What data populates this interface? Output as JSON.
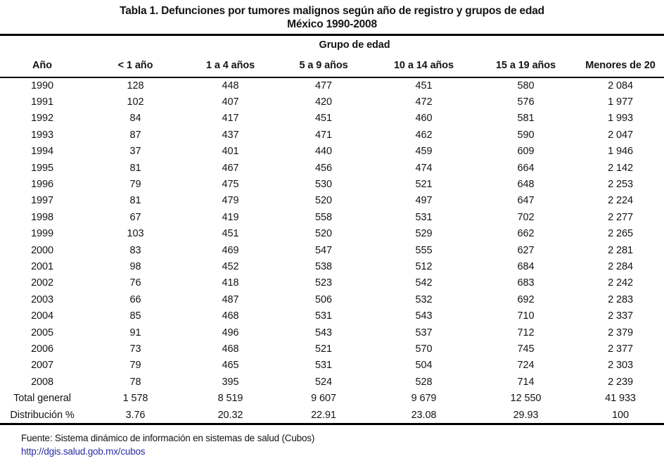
{
  "page": {
    "background": "#ffffff",
    "text_color": "#141414"
  },
  "title": {
    "line1": "Tabla 1. Defunciones por tumores malignos según año de registro y grupos de edad",
    "line2": "México 1990-2008"
  },
  "table": {
    "group_header": "Grupo de edad",
    "columns": [
      "Año",
      "< 1 año",
      "1 a 4 años",
      "5 a 9 años",
      "10 a 14 años",
      "15 a 19 años",
      "Menores de 20"
    ],
    "rows": [
      {
        "label": "1990",
        "values": [
          "128",
          "448",
          "477",
          "451",
          "580",
          "2 084"
        ]
      },
      {
        "label": "1991",
        "values": [
          "102",
          "407",
          "420",
          "472",
          "576",
          "1 977"
        ]
      },
      {
        "label": "1992",
        "values": [
          "84",
          "417",
          "451",
          "460",
          "581",
          "1 993"
        ]
      },
      {
        "label": "1993",
        "values": [
          "87",
          "437",
          "471",
          "462",
          "590",
          "2 047"
        ]
      },
      {
        "label": "1994",
        "values": [
          "37",
          "401",
          "440",
          "459",
          "609",
          "1 946"
        ]
      },
      {
        "label": "1995",
        "values": [
          "81",
          "467",
          "456",
          "474",
          "664",
          "2 142"
        ]
      },
      {
        "label": "1996",
        "values": [
          "79",
          "475",
          "530",
          "521",
          "648",
          "2 253"
        ]
      },
      {
        "label": "1997",
        "values": [
          "81",
          "479",
          "520",
          "497",
          "647",
          "2 224"
        ]
      },
      {
        "label": "1998",
        "values": [
          "67",
          "419",
          "558",
          "531",
          "702",
          "2 277"
        ]
      },
      {
        "label": "1999",
        "values": [
          "103",
          "451",
          "520",
          "529",
          "662",
          "2 265"
        ]
      },
      {
        "label": "2000",
        "values": [
          "83",
          "469",
          "547",
          "555",
          "627",
          "2 281"
        ]
      },
      {
        "label": "2001",
        "values": [
          "98",
          "452",
          "538",
          "512",
          "684",
          "2 284"
        ]
      },
      {
        "label": "2002",
        "values": [
          "76",
          "418",
          "523",
          "542",
          "683",
          "2 242"
        ]
      },
      {
        "label": "2003",
        "values": [
          "66",
          "487",
          "506",
          "532",
          "692",
          "2 283"
        ]
      },
      {
        "label": "2004",
        "values": [
          "85",
          "468",
          "531",
          "543",
          "710",
          "2 337"
        ]
      },
      {
        "label": "2005",
        "values": [
          "91",
          "496",
          "543",
          "537",
          "712",
          "2 379"
        ]
      },
      {
        "label": "2006",
        "values": [
          "73",
          "468",
          "521",
          "570",
          "745",
          "2 377"
        ]
      },
      {
        "label": "2007",
        "values": [
          "79",
          "465",
          "531",
          "504",
          "724",
          "2 303"
        ]
      },
      {
        "label": "2008",
        "values": [
          "78",
          "395",
          "524",
          "528",
          "714",
          "2 239"
        ]
      }
    ],
    "total_row": {
      "label": "Total general",
      "values": [
        "1 578",
        "8 519",
        "9 607",
        "9 679",
        "12 550",
        "41 933"
      ]
    },
    "distribution_row": {
      "label": "Distribución %",
      "values": [
        "3.76",
        "20.32",
        "22.91",
        "23.08",
        "29.93",
        "100"
      ]
    }
  },
  "footer": {
    "source": "Fuente: Sistema dinámico de información en sistemas de salud (Cubos)",
    "link": "http://dgis.salud.gob.mx/cubos",
    "link_color": "#2b2ba6"
  }
}
